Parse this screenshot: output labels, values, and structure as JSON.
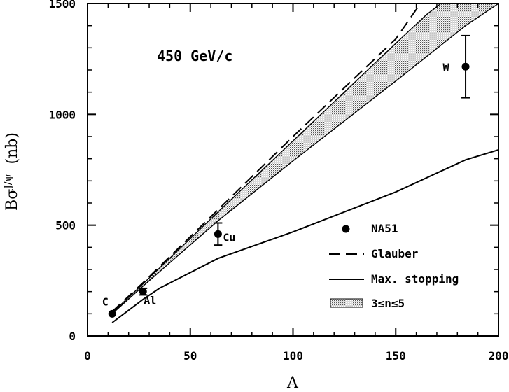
{
  "chart_data": {
    "type": "scatter",
    "xlabel": "A",
    "ylabel_parts": {
      "b": "Bσ",
      "sup": "J/ψ",
      "unit": "(nb)"
    },
    "xlim": [
      0,
      200
    ],
    "ylim": [
      0,
      1500
    ],
    "xticks": [
      0,
      50,
      100,
      150,
      200
    ],
    "yticks": [
      0,
      500,
      1000,
      1500
    ],
    "energy_label": "450 GeV/c",
    "series": [
      {
        "name": "NA51",
        "kind": "points",
        "points": [
          {
            "x": 12,
            "y": 100,
            "yerr": 0,
            "label": "C"
          },
          {
            "x": 27,
            "y": 200,
            "yerr": 15,
            "label": "Al"
          },
          {
            "x": 63.5,
            "y": 460,
            "yerr": 50,
            "label": "Cu"
          },
          {
            "x": 184,
            "y": 1215,
            "yerr": 140,
            "label": "W"
          }
        ]
      },
      {
        "name": "Glauber",
        "kind": "dashed",
        "points": [
          [
            12,
            110
          ],
          [
            27,
            240
          ],
          [
            63.5,
            570
          ],
          [
            100,
            900
          ],
          [
            150,
            1340
          ],
          [
            162,
            1500
          ]
        ]
      },
      {
        "name": "Max. stopping",
        "kind": "solid",
        "points": [
          [
            12,
            60
          ],
          [
            27,
            165
          ],
          [
            35,
            215
          ],
          [
            63.5,
            350
          ],
          [
            100,
            470
          ],
          [
            150,
            650
          ],
          [
            184,
            795
          ],
          [
            200,
            840
          ]
        ]
      },
      {
        "name": "3≤n≤5",
        "kind": "band",
        "upper": [
          [
            12,
            105
          ],
          [
            27,
            235
          ],
          [
            63.5,
            560
          ],
          [
            100,
            880
          ],
          [
            150,
            1320
          ],
          [
            165,
            1450
          ],
          [
            172,
            1500
          ]
        ],
        "lower": [
          [
            12,
            100
          ],
          [
            27,
            225
          ],
          [
            63.5,
            520
          ],
          [
            100,
            790
          ],
          [
            150,
            1150
          ],
          [
            184,
            1400
          ],
          [
            200,
            1500
          ]
        ]
      }
    ],
    "legend_position": "lower-right"
  }
}
